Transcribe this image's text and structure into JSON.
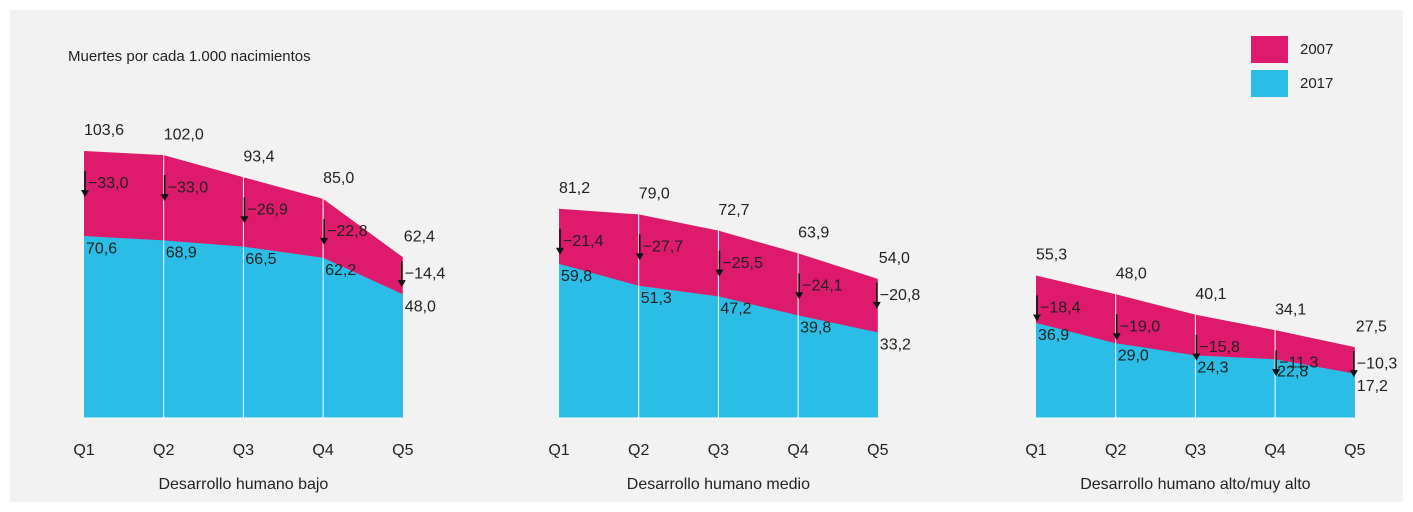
{
  "chart_data": [
    {
      "type": "area",
      "ylabel": "Muertes por cada 1.000 nacimientos",
      "xlabel": "Desarrollo humano bajo",
      "categories": [
        "Q1",
        "Q2",
        "Q3",
        "Q4",
        "Q5"
      ],
      "ylim": [
        0,
        110
      ],
      "series": [
        {
          "name": "2007",
          "color": "#dd1a6c",
          "values": [
            103.6,
            102.0,
            93.4,
            85.0,
            62.4
          ],
          "value_labels": [
            "103,6",
            "102,0",
            "93,4",
            "85,0",
            "62,4"
          ]
        },
        {
          "name": "2017",
          "color": "#2bbde5",
          "values": [
            70.6,
            68.9,
            66.5,
            62.2,
            48.0
          ],
          "value_labels": [
            "70,6",
            "68,9",
            "66,5",
            "62,2",
            "48,0"
          ]
        }
      ],
      "changes": [
        -33.0,
        -33.0,
        -26.9,
        -22.8,
        -14.4
      ],
      "change_labels": [
        "−33,0",
        "−33,0",
        "−26,9",
        "−22,8",
        "−14,4"
      ]
    },
    {
      "type": "area",
      "xlabel": "Desarrollo humano medio",
      "categories": [
        "Q1",
        "Q2",
        "Q3",
        "Q4",
        "Q5"
      ],
      "ylim": [
        0,
        110
      ],
      "series": [
        {
          "name": "2007",
          "color": "#dd1a6c",
          "values": [
            81.2,
            79.0,
            72.7,
            63.9,
            54.0
          ],
          "value_labels": [
            "81,2",
            "79,0",
            "72,7",
            "63,9",
            "54,0"
          ]
        },
        {
          "name": "2017",
          "color": "#2bbde5",
          "values": [
            59.8,
            51.3,
            47.2,
            39.8,
            33.2
          ],
          "value_labels": [
            "59,8",
            "51,3",
            "47,2",
            "39,8",
            "33,2"
          ]
        }
      ],
      "changes": [
        -21.4,
        -27.7,
        -25.5,
        -24.1,
        -20.8
      ],
      "change_labels": [
        "−21,4",
        "−27,7",
        "−25,5",
        "−24,1",
        "−20,8"
      ]
    },
    {
      "type": "area",
      "xlabel": "Desarrollo humano alto/muy alto",
      "categories": [
        "Q1",
        "Q2",
        "Q3",
        "Q4",
        "Q5"
      ],
      "ylim": [
        0,
        110
      ],
      "series": [
        {
          "name": "2007",
          "color": "#dd1a6c",
          "values": [
            55.3,
            48.0,
            40.1,
            34.1,
            27.5
          ],
          "value_labels": [
            "55,3",
            "48,0",
            "40,1",
            "34,1",
            "27,5"
          ]
        },
        {
          "name": "2017",
          "color": "#2bbde5",
          "values": [
            36.9,
            29.0,
            24.3,
            22.8,
            17.2
          ],
          "value_labels": [
            "36,9",
            "29,0",
            "24,3",
            "22,8",
            "17,2"
          ]
        }
      ],
      "changes": [
        -18.4,
        -19.0,
        -15.8,
        -11.3,
        -10.3
      ],
      "change_labels": [
        "−18,4",
        "−19,0",
        "−15,8",
        "−11,3",
        "−10,3"
      ]
    }
  ]
}
